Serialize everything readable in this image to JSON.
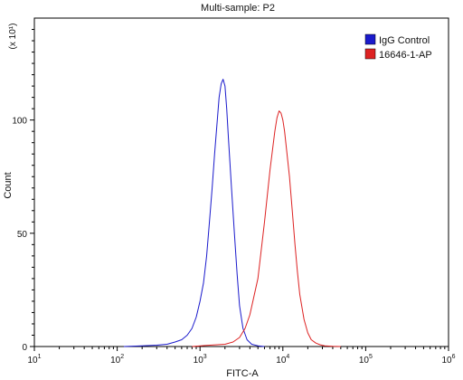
{
  "chart_data": {
    "type": "line",
    "title": "Multi-sample: P2",
    "xlabel": "FITC-A",
    "ylabel": "Count",
    "y_scale_note": "(x 10¹)",
    "x_scale": "log",
    "xlim": [
      10,
      1000000
    ],
    "ylim": [
      0,
      145
    ],
    "x_ticks": [
      {
        "value": 10,
        "base": "10",
        "exp": "1"
      },
      {
        "value": 100,
        "base": "10",
        "exp": "2"
      },
      {
        "value": 1000,
        "base": "10",
        "exp": "3"
      },
      {
        "value": 10000,
        "base": "10",
        "exp": "4"
      },
      {
        "value": 100000,
        "base": "10",
        "exp": "5"
      },
      {
        "value": 1000000,
        "base": "10",
        "exp": "6"
      }
    ],
    "y_ticks": [
      0,
      50,
      100
    ],
    "grid": false,
    "legend_position": "top-right",
    "series": [
      {
        "name": "IgG Control",
        "color": "#1a1acc",
        "x": [
          120,
          200,
          300,
          400,
          500,
          600,
          700,
          800,
          900,
          1000,
          1100,
          1200,
          1300,
          1400,
          1500,
          1600,
          1700,
          1800,
          1900,
          2000,
          2100,
          2200,
          2400,
          2600,
          2800,
          3000,
          3300,
          3700,
          4200,
          5000,
          6000
        ],
        "y": [
          0,
          0.3,
          0.6,
          1,
          2,
          3,
          5,
          8,
          13,
          20,
          28,
          40,
          55,
          70,
          85,
          98,
          110,
          116,
          118,
          115,
          105,
          92,
          70,
          50,
          32,
          18,
          8,
          3,
          1,
          0.3,
          0
        ]
      },
      {
        "name": "16646-1-AP",
        "color": "#dd2222",
        "x": [
          800,
          1200,
          2000,
          2500,
          3000,
          3500,
          4000,
          5000,
          6000,
          7000,
          8000,
          8500,
          9000,
          9500,
          10000,
          10500,
          11000,
          12000,
          13000,
          14000,
          15000,
          16000,
          18000,
          20000,
          22000,
          25000,
          28000,
          32000,
          40000,
          50000
        ],
        "y": [
          0,
          0.5,
          1,
          2,
          4,
          8,
          14,
          30,
          55,
          78,
          95,
          101,
          104,
          103,
          100,
          95,
          88,
          75,
          60,
          45,
          33,
          23,
          12,
          6,
          3,
          1.5,
          0.8,
          0.3,
          0.1,
          0
        ]
      }
    ]
  }
}
